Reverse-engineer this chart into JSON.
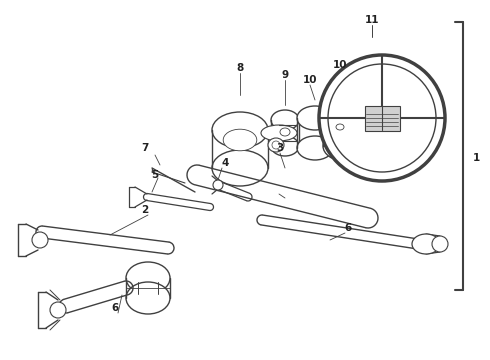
{
  "background_color": "#ffffff",
  "line_color": "#404040",
  "label_color": "#222222",
  "fig_width": 4.9,
  "fig_height": 3.6,
  "dpi": 100
}
